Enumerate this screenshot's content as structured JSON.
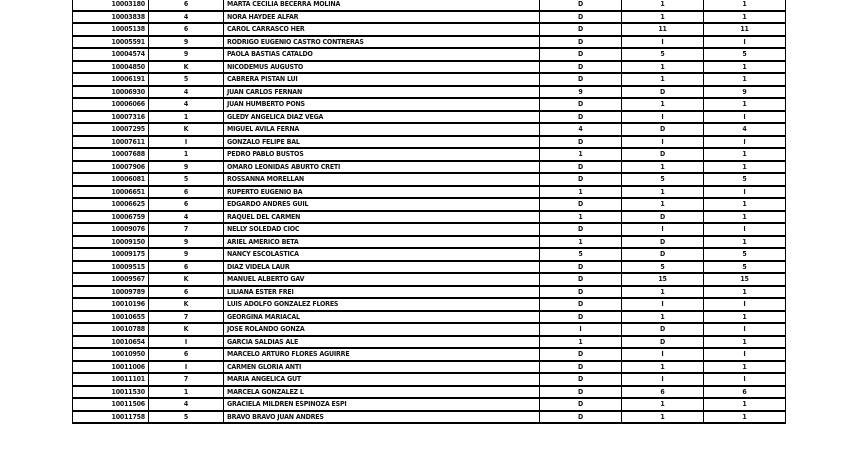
{
  "rows": [
    [
      "10003180",
      "6",
      "MARTA CECILIA BECERRA MOLINA",
      "D",
      "1",
      "1"
    ],
    [
      "10003838",
      "4",
      "NORA HAYDEE ALFAR",
      "D",
      "1",
      "1"
    ],
    [
      "10005138",
      "6",
      "CAROL CARRASCO HER",
      "D",
      "11",
      "11"
    ],
    [
      "10005591",
      "9",
      "RODRIGO EUGENIO CASTRO CONTRERAS",
      "D",
      "I",
      "I"
    ],
    [
      "10004574",
      "9",
      "PAOLA BASTIAS CATALDO",
      "D",
      "5",
      "5"
    ],
    [
      "10004850",
      "K",
      "NICODEMUS AUGUSTO",
      "D",
      "1",
      "1"
    ],
    [
      "10006191",
      "5",
      "CABRERA PISTAN LUI",
      "D",
      "1",
      "1"
    ],
    [
      "10006930",
      "4",
      "JUAN CARLOS FERNAN",
      "9",
      "D",
      "9"
    ],
    [
      "10006066",
      "4",
      "JUAN HUMBERTO PONS",
      "D",
      "1",
      "1"
    ],
    [
      "10007316",
      "1",
      "GLEDY ANGELICA DIAZ VEGA",
      "D",
      "I",
      "I"
    ],
    [
      "10007295",
      "K",
      "MIGUEL AVILA FERNA",
      "4",
      "D",
      "4"
    ],
    [
      "10007611",
      "I",
      "GONZALO FELIPE BAL",
      "D",
      "I",
      "I"
    ],
    [
      "10007688",
      "1",
      "PEDRO PABLO BUSTOS",
      "1",
      "D",
      "1"
    ],
    [
      "10007906",
      "9",
      "OMARO LEONIDAS ABURTO CRETI",
      "D",
      "1",
      "1"
    ],
    [
      "10006081",
      "5",
      "ROSSANNA MORELLAN",
      "D",
      "5",
      "5"
    ],
    [
      "10006651",
      "6",
      "RUPERTO EUGENIO BA",
      "1",
      "1",
      "I"
    ],
    [
      "10006625",
      "6",
      "EDGARDO ANDRES GUIL",
      "D",
      "1",
      "1"
    ],
    [
      "10006759",
      "4",
      "RAQUEL DEL CARMEN",
      "1",
      "D",
      "1"
    ],
    [
      "10009076",
      "7",
      "NELLY SOLEDAD CIOC",
      "D",
      "I",
      "I"
    ],
    [
      "10009150",
      "9",
      "ARIEL AMERICO BETA",
      "1",
      "D",
      "1"
    ],
    [
      "10009175",
      "9",
      "NANCY ESCOLASTICA",
      "5",
      "D",
      "5"
    ],
    [
      "10009515",
      "6",
      "DIAZ VIDELA LAUR",
      "D",
      "5",
      "5"
    ],
    [
      "10009567",
      "K",
      "MANUEL ALBERTO GAV",
      "D",
      "15",
      "15"
    ],
    [
      "10009789",
      "6",
      "LILIANA ESTER FREI",
      "D",
      "1",
      "1"
    ],
    [
      "10010196",
      "K",
      "LUIS ADOLFO GONZALEZ FLORES",
      "D",
      "I",
      "I"
    ],
    [
      "10010655",
      "7",
      "GEORGINA MARIACAL",
      "D",
      "1",
      "1"
    ],
    [
      "10010788",
      "K",
      "JOSE ROLANDO GONZA",
      "I",
      "D",
      "I"
    ],
    [
      "10010654",
      "I",
      "GARCIA SALDIAS ALE",
      "1",
      "D",
      "1"
    ],
    [
      "10010950",
      "6",
      "MARCELO ARTURO FLORES AGUIRRE",
      "D",
      "I",
      "I"
    ],
    [
      "10011006",
      "I",
      "CARMEN GLORIA ANTI",
      "D",
      "1",
      "1"
    ],
    [
      "10011101",
      "7",
      "MARIA ANGELICA GUT",
      "D",
      "I",
      "I"
    ],
    [
      "10011530",
      "1",
      "MARCELA GONZALEZ L",
      "D",
      "6",
      "6"
    ],
    [
      "10011506",
      "4",
      "GRACIELA MILDREN ESPINOZA ESPI",
      "D",
      "1",
      "1"
    ],
    [
      "10011758",
      "5",
      "BRAVO BRAVO JUAN ANDRES",
      "D",
      "1",
      "1"
    ]
  ]
}
